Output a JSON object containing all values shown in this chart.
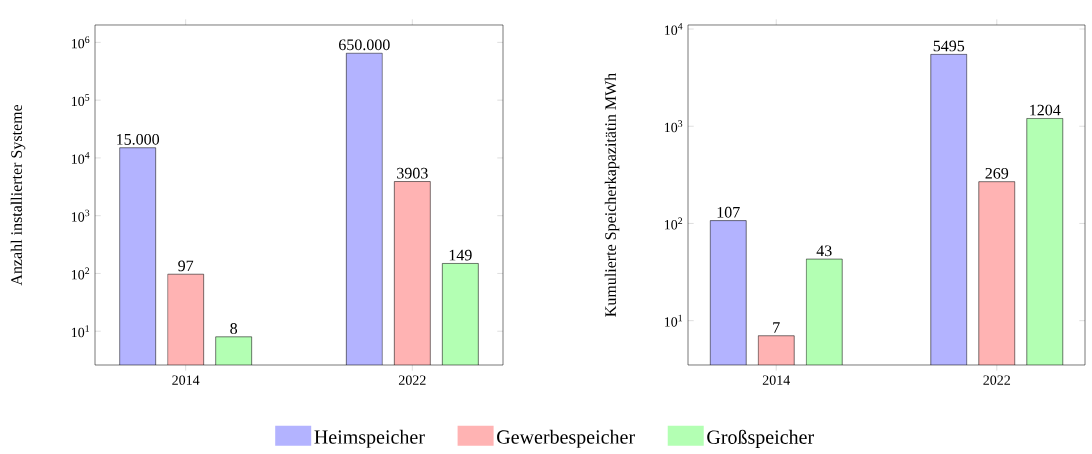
{
  "chart_data": [
    {
      "type": "bar",
      "ylabel": "Anzahl installierter Systeme",
      "categories": [
        "2014",
        "2022"
      ],
      "log": true,
      "legend": "bottom",
      "ylim": [
        2.6,
        2000000
      ],
      "yticks": [
        {
          "value": 10,
          "label": "10$^{1}$"
        },
        {
          "value": 100,
          "label": "10$^{2}$"
        },
        {
          "value": 1000,
          "label": "10$^{3}$"
        },
        {
          "value": 10000,
          "label": "10$^{4}$"
        },
        {
          "value": 100000,
          "label": "10$^{5}$"
        },
        {
          "value": 1000000,
          "label": "10$^{6}$"
        }
      ],
      "series": [
        {
          "name": "Heimspeicher",
          "color": "#b3b3ff",
          "values": [
            15000,
            650000
          ],
          "value_labels": [
            "15.000",
            "650.000"
          ]
        },
        {
          "name": "Gewerbespeicher",
          "color": "#ffb3b3",
          "values": [
            97,
            3903
          ],
          "value_labels": [
            "97",
            "3903"
          ]
        },
        {
          "name": "Großspeicher",
          "color": "#b3ffb3",
          "values": [
            8,
            149
          ],
          "value_labels": [
            "8",
            "149"
          ]
        }
      ]
    },
    {
      "type": "bar",
      "ylabel": "Kumulierte Speicherkapazitätin MWh",
      "categories": [
        "2014",
        "2022"
      ],
      "log": true,
      "ylim": [
        3.5,
        11000
      ],
      "yticks": [
        {
          "value": 10,
          "label": "10$^{1}$"
        },
        {
          "value": 100,
          "label": "10$^{2}$"
        },
        {
          "value": 1000,
          "label": "10$^{3}$"
        },
        {
          "value": 10000,
          "label": "10$^{4}$"
        }
      ],
      "series": [
        {
          "color": "#b3b3ff",
          "values": [
            107,
            5495
          ],
          "value_labels": [
            "107",
            "5495"
          ]
        },
        {
          "color": "#ffb3b3",
          "values": [
            7,
            269
          ],
          "value_labels": [
            "7",
            "269"
          ]
        },
        {
          "color": "#b3ffb3",
          "values": [
            43,
            1204
          ],
          "value_labels": [
            "43",
            "1204"
          ]
        }
      ]
    }
  ]
}
